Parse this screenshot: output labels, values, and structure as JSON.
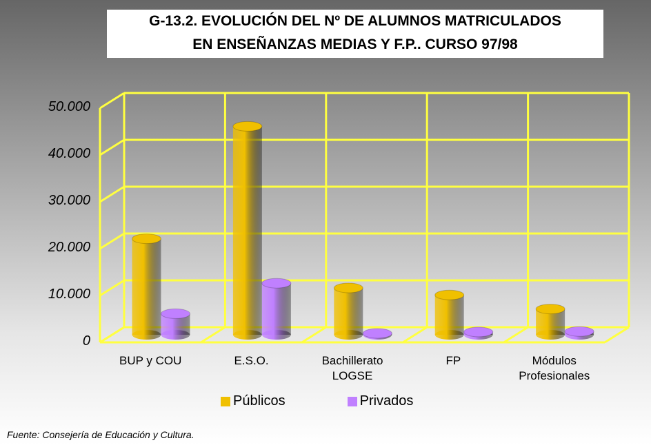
{
  "chart_data": {
    "type": "bar3d",
    "title": [
      "G-13.2. EVOLUCIÓN DEL Nº DE ALUMNOS MATRICULADOS",
      "EN  ENSEÑANZAS MEDIAS Y F.P.. CURSO 97/98"
    ],
    "categories": [
      "BUP y COU",
      "E.S.O.",
      "Bachillerato LOGSE",
      "FP",
      "Módulos Profesionales"
    ],
    "series": [
      {
        "name": "Públicos",
        "color": "#f0c000",
        "values": [
          20500,
          44500,
          10000,
          8500,
          5500
        ]
      },
      {
        "name": "Privados",
        "color": "#c080ff",
        "values": [
          4500,
          11000,
          300,
          600,
          700
        ]
      }
    ],
    "ylim": [
      0,
      50000
    ],
    "yticks": [
      0,
      {
        "value": 10000,
        "label": "10.000"
      },
      {
        "value": 20000,
        "label": "20.000"
      },
      {
        "value": 30000,
        "label": "30.000"
      },
      {
        "value": 40000,
        "label": "40.000"
      },
      {
        "value": 50000,
        "label": "50.000"
      }
    ],
    "grid": true,
    "grid_color": "#ffff40",
    "source": "Fuente:  Consejería de Educación y Cultura."
  }
}
